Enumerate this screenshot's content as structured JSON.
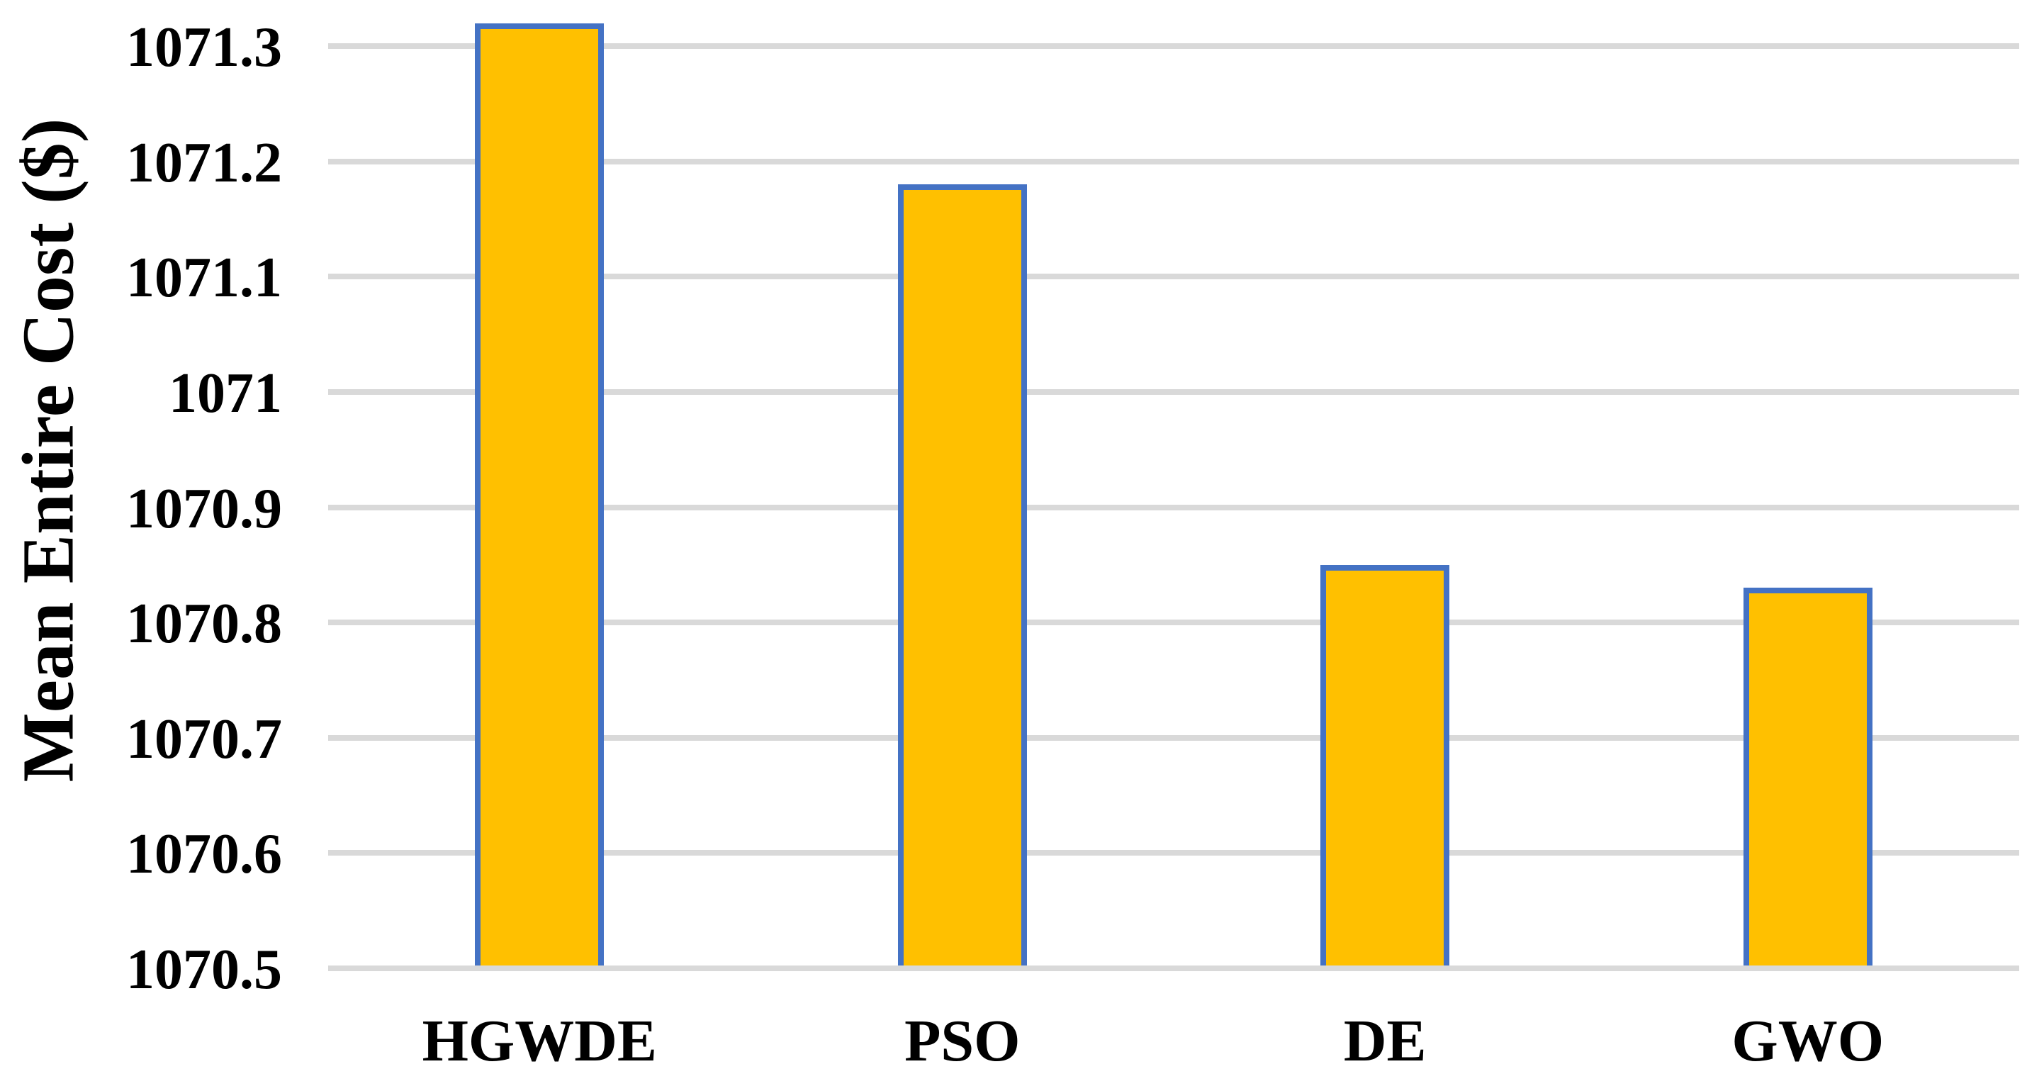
{
  "chart_data": {
    "type": "bar",
    "categories": [
      "HGWDE",
      "PSO",
      "DE",
      "GWO"
    ],
    "values": [
      1071.32,
      1071.18,
      1070.85,
      1070.83
    ],
    "title": "",
    "xlabel": "",
    "ylabel": "Mean Entire Cost ($)",
    "ylim": [
      1070.5,
      1071.34
    ],
    "ytick_interval": 0.1,
    "yticks": [
      1070.5,
      1070.6,
      1070.7,
      1070.8,
      1070.9,
      1071,
      1071.1,
      1071.2,
      1071.3
    ],
    "ytick_labels": [
      "1070.5",
      "1070.6",
      "1070.7",
      "1070.8",
      "1070.9",
      "1071",
      "1071.1",
      "1071.2",
      "1071.3"
    ],
    "grid": true,
    "legend": false,
    "bar_outline": true,
    "colors": {
      "bar_fill": "#FFC000",
      "bar_border": "#4472C4",
      "gridline": "#D9D9D9",
      "text": "#000000",
      "background": "#FFFFFF"
    }
  }
}
